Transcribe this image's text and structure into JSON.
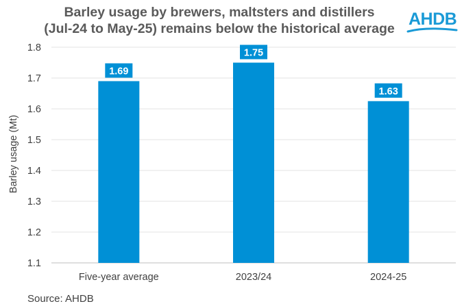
{
  "chart_data": {
    "type": "bar",
    "title_lines": [
      "Barley usage by brewers, maltsters and distillers",
      "(Jul-24 to May-25) remains below the historical average"
    ],
    "categories": [
      "Five-year average",
      "2023/24",
      "2024-25"
    ],
    "values": [
      1.69,
      1.75,
      1.625
    ],
    "data_labels": [
      "1.69",
      "1.75",
      "1.63"
    ],
    "ylabel": "Barley usage (Mt)",
    "xlabel": "",
    "ylim": [
      1.1,
      1.8
    ],
    "yticks": [
      "1.1",
      "1.2",
      "1.3",
      "1.4",
      "1.5",
      "1.6",
      "1.7",
      "1.8"
    ],
    "grid": true,
    "bar_color": "#0090d6",
    "label_color": "#0090d6"
  },
  "logo": {
    "text": "AHDB",
    "color": "#1a9ad6"
  },
  "source": "Source: AHDB"
}
